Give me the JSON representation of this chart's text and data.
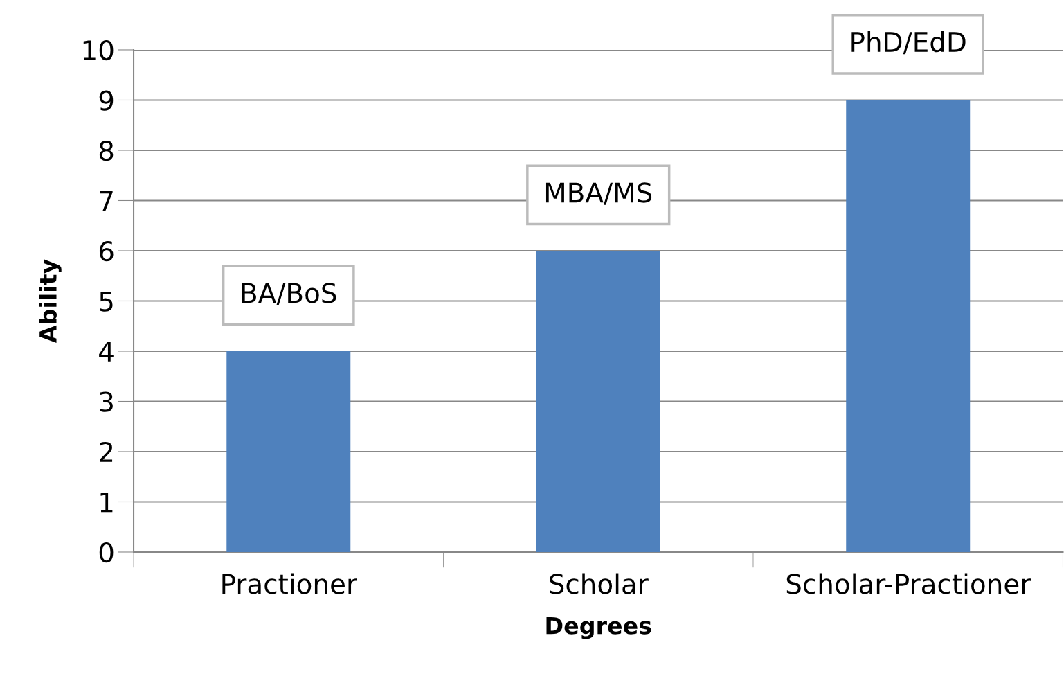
{
  "chart_data": {
    "type": "bar",
    "xlabel": "Degrees",
    "ylabel": "Ability",
    "categories": [
      "Practioner",
      "Scholar",
      "Scholar-Practioner"
    ],
    "values": [
      4,
      6,
      9
    ],
    "color": "#4f81bd",
    "ylim": [
      0,
      10
    ],
    "yticks": [
      0,
      1,
      2,
      3,
      4,
      5,
      6,
      7,
      8,
      9,
      10
    ],
    "grid": "y",
    "annotations": [
      {
        "text": "BA/BoS",
        "x": "Practioner",
        "y": 4
      },
      {
        "text": "MBA/MS",
        "x": "Scholar",
        "y": 6
      },
      {
        "text": "PhD/EdD",
        "x": "Scholar-Practioner",
        "y": 9
      }
    ]
  }
}
